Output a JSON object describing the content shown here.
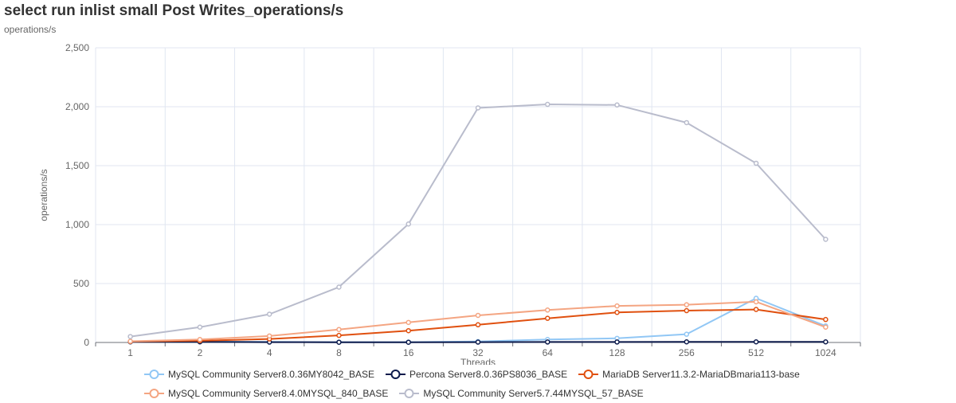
{
  "chart_data": {
    "type": "line",
    "title": "select run inlist small Post Writes_operations/s",
    "subtitle": "operations/s",
    "xlabel": "Threads",
    "ylabel": "operations/s",
    "categories": [
      "1",
      "2",
      "4",
      "8",
      "16",
      "32",
      "64",
      "128",
      "256",
      "512",
      "1024"
    ],
    "ylim": [
      0,
      2500
    ],
    "yticks": [
      0,
      500,
      1000,
      1500,
      2000,
      2500
    ],
    "ytick_labels": [
      "0",
      "500",
      "1,000",
      "1,500",
      "2,000",
      "2,500"
    ],
    "grid": true,
    "legend_position": "bottom",
    "series": [
      {
        "name": "MySQL Community Server8.0.36MY8042_BASE",
        "color": "#91c7f5",
        "values": [
          5,
          8,
          5,
          3,
          3,
          8,
          25,
          35,
          70,
          375,
          140
        ]
      },
      {
        "name": "Percona Server8.0.36PS8036_BASE",
        "color": "#0d1b4c",
        "values": [
          5,
          5,
          3,
          2,
          2,
          3,
          4,
          4,
          5,
          5,
          5
        ]
      },
      {
        "name": "MariaDB Server11.3.2-MariaDBmaria113-base",
        "color": "#e0500f",
        "values": [
          8,
          15,
          30,
          60,
          100,
          150,
          205,
          255,
          270,
          280,
          195
        ]
      },
      {
        "name": "MySQL Community Server8.4.0MYSQL_840_BASE",
        "color": "#f4a582",
        "values": [
          10,
          25,
          55,
          110,
          170,
          230,
          275,
          310,
          320,
          345,
          130
        ]
      },
      {
        "name": "MySQL Community Server5.7.44MYSQL_57_BASE",
        "color": "#b9bccc",
        "values": [
          50,
          130,
          240,
          470,
          1005,
          1990,
          2020,
          2015,
          1865,
          1520,
          875
        ]
      }
    ]
  }
}
